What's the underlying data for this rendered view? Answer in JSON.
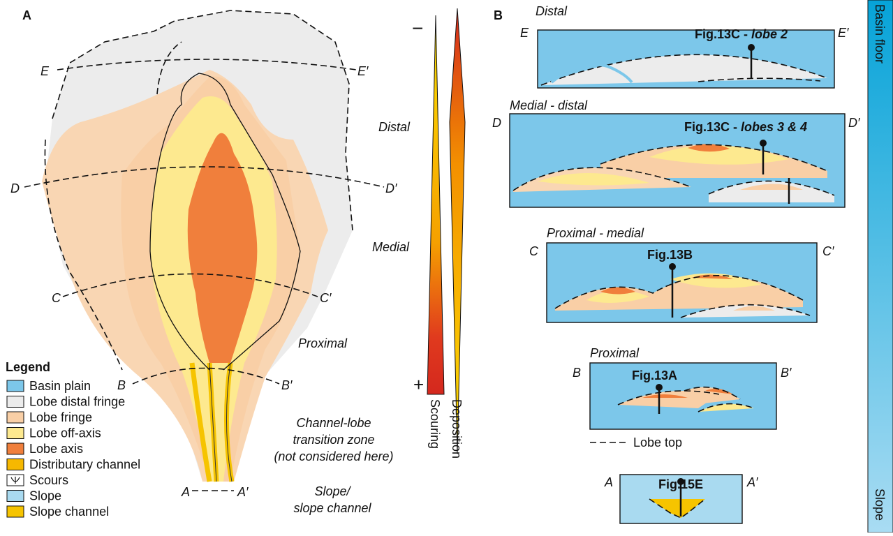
{
  "panel_a": {
    "label": "A",
    "sections": [
      {
        "left": "E",
        "right": "E′"
      },
      {
        "left": "D",
        "right": "D′"
      },
      {
        "left": "C",
        "right": "C′"
      },
      {
        "left": "B",
        "right": "B′"
      },
      {
        "left": "A",
        "right": "A′"
      }
    ],
    "zones": {
      "distal": "Distal",
      "medial": "Medial",
      "proximal": "Proximal",
      "transition": [
        "Channel-lobe",
        "transition zone",
        "(not considered here)"
      ],
      "slope": [
        "Slope/",
        "slope channel"
      ]
    },
    "legend": {
      "title": "Legend",
      "items": [
        "Basin plain",
        "Lobe distal fringe",
        "Lobe fringe",
        "Lobe off-axis",
        "Lobe axis",
        "Distributary channel",
        "Scours",
        "Slope",
        "Slope channel"
      ]
    },
    "scale": {
      "minus": "−",
      "plus": "+",
      "scouring": "Scouring",
      "deposition": "Deposition"
    }
  },
  "panel_b": {
    "label": "B",
    "sections": [
      {
        "name": "Distal",
        "left": "E",
        "right": "E′",
        "ref": "Fig.13C -",
        "lobe": "lobe 2"
      },
      {
        "name": "Medial - distal",
        "left": "D",
        "right": "D′",
        "ref": "Fig.13C -",
        "lobe": "lobes 3 & 4"
      },
      {
        "name": "Proximal - medial",
        "left": "C",
        "right": "C′",
        "ref": "Fig.13B"
      },
      {
        "name": "Proximal",
        "left": "B",
        "right": "B′",
        "ref": "Fig.13A"
      },
      {
        "left": "A",
        "right": "A′",
        "ref": "Fig.15E"
      }
    ],
    "lobe_top": "Lobe top",
    "zones": [
      "Basin floor",
      "Slope"
    ]
  }
}
